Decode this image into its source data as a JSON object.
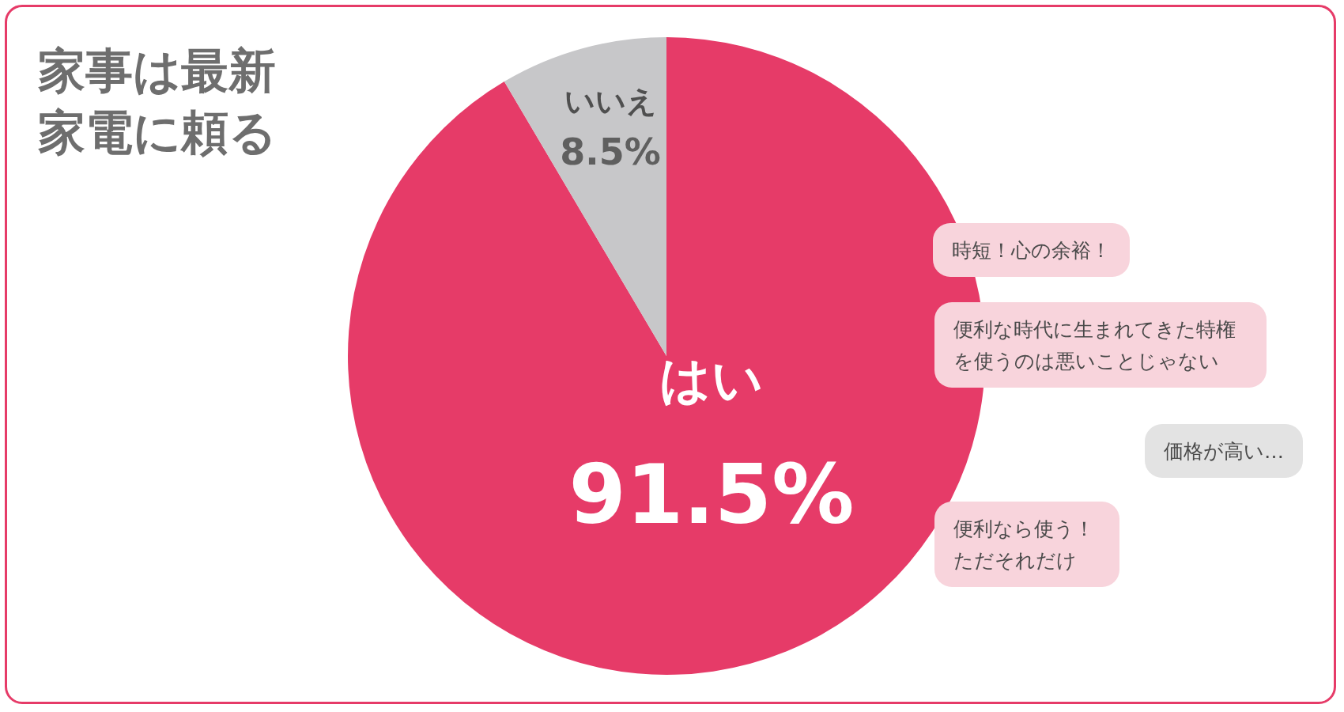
{
  "chart_data": {
    "type": "pie",
    "title": "家事は最新家電に頼る",
    "categories": [
      "はい",
      "いいえ"
    ],
    "values": [
      91.5,
      8.5
    ],
    "colors": [
      "#e63b68",
      "#c7c7c9"
    ],
    "value_labels": [
      "91.5%",
      "8.5%"
    ],
    "legend": false,
    "annotations": [
      "時短！心の余裕！",
      "便利な時代に生まれてきた特権を使うのは悪いことじゃない",
      "価格が高い…",
      "便利なら使う！ただそれだけ"
    ]
  }
}
